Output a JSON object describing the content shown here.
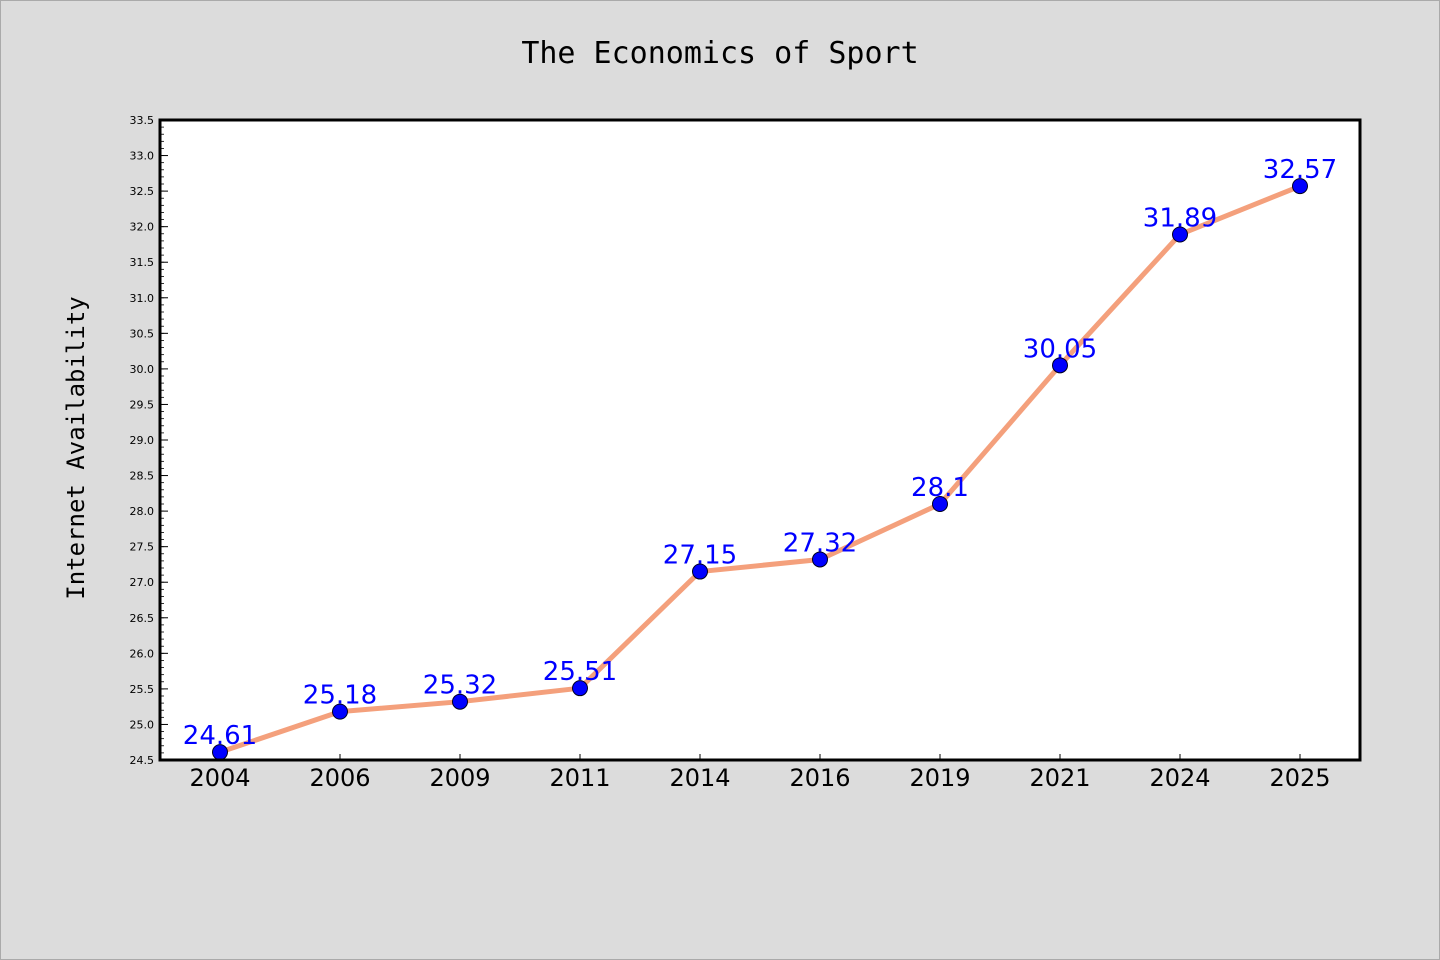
{
  "colors": {
    "background": "#dcdcdc",
    "plot_background": "#ffffff",
    "line": "#f4a07c",
    "marker": "#0000ff",
    "data_label": "#0000ff"
  },
  "chart_data": {
    "type": "line",
    "title": "The Economics of Sport",
    "xlabel": "",
    "ylabel": "Internet Availability",
    "categories": [
      "2004",
      "2006",
      "2009",
      "2011",
      "2014",
      "2016",
      "2019",
      "2021",
      "2024",
      "2025"
    ],
    "series": [
      {
        "values": [
          24.61,
          25.18,
          25.32,
          25.51,
          27.15,
          27.32,
          28.1,
          30.05,
          31.89,
          32.57
        ],
        "data_labels": [
          "24.61",
          "25.18",
          "25.32",
          "25.51",
          "27.15",
          "27.32",
          "28.1",
          "30.05",
          "31.89",
          "32.57"
        ]
      }
    ],
    "ylim": [
      24.5,
      33.5
    ],
    "yticks": [
      "24.5",
      "25.0",
      "25.5",
      "26.0",
      "26.5",
      "27.0",
      "27.5",
      "28.0",
      "28.5",
      "29.0",
      "29.5",
      "30.0",
      "30.5",
      "31.0",
      "31.5",
      "32.0",
      "32.5",
      "33.0",
      "33.5"
    ],
    "grid": false,
    "legend": false
  }
}
